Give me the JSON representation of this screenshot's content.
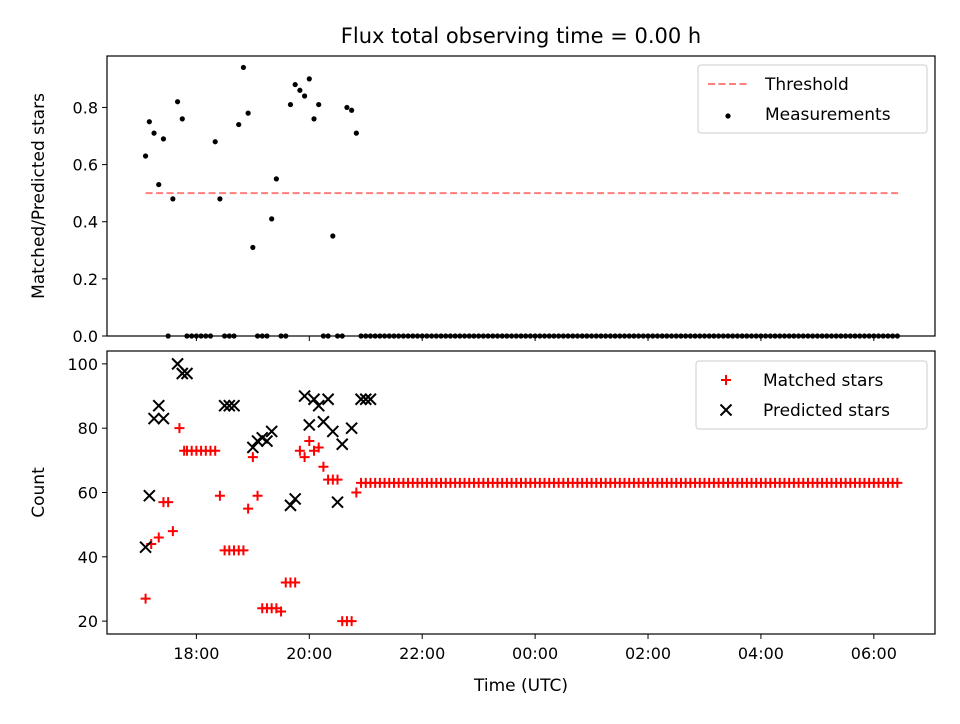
{
  "figure": {
    "title": "Flux total observing time = 0.00 h",
    "xlabel": "Time (UTC)"
  },
  "chart_data": [
    {
      "type": "scatter",
      "ylabel": "Matched/Predicted stars",
      "ylim": [
        0,
        0.98
      ],
      "yticks": [
        "0.0",
        "0.2",
        "0.4",
        "0.6",
        "0.8"
      ],
      "legend_position": "top-right",
      "threshold": {
        "name": "Threshold",
        "y": 0.5,
        "x_start": "17:06",
        "x_end": "06:27",
        "color": "#ff7f7f",
        "style": "dashed"
      },
      "series": [
        {
          "name": "Measurements",
          "color": "#000000",
          "marker": "dot",
          "x": [
            "17:06",
            "17:10",
            "17:15",
            "17:20",
            "17:25",
            "17:30",
            "17:35",
            "17:40",
            "17:45",
            "17:50",
            "17:55",
            "18:00",
            "18:05",
            "18:10",
            "18:15",
            "18:20",
            "18:25",
            "18:30",
            "18:35",
            "18:40",
            "18:45",
            "18:50",
            "18:55",
            "19:00",
            "19:05",
            "19:10",
            "19:15",
            "19:20",
            "19:25",
            "19:30",
            "19:35",
            "19:40",
            "19:45",
            "19:50",
            "19:55",
            "20:00",
            "20:05",
            "20:10",
            "20:15",
            "20:20",
            "20:25",
            "20:30",
            "20:35",
            "20:40",
            "20:45",
            "20:50",
            "20:55",
            "21:00",
            "21:05"
          ],
          "y": [
            0.63,
            0.75,
            0.71,
            0.53,
            0.69,
            0.0,
            0.48,
            0.82,
            0.76,
            0.0,
            0.0,
            0.0,
            0.0,
            0.0,
            0.0,
            0.68,
            0.48,
            0.0,
            0.0,
            0.0,
            0.74,
            0.94,
            0.78,
            0.31,
            0.0,
            0.0,
            0.0,
            0.41,
            0.55,
            0.0,
            0.0,
            0.81,
            0.88,
            0.86,
            0.84,
            0.9,
            0.76,
            0.81,
            0.0,
            0.0,
            0.35,
            0.0,
            0.0,
            0.8,
            0.79,
            0.71,
            0.0,
            0.0,
            0.0
          ],
          "zero_run": {
            "x_start": "21:10",
            "x_end": "06:25",
            "step_minutes": 5,
            "y": 0.0
          }
        }
      ]
    },
    {
      "type": "scatter",
      "ylabel": "Count",
      "ylim": [
        16,
        104
      ],
      "yticks": [
        "20",
        "40",
        "60",
        "80",
        "100"
      ],
      "legend_position": "top-right",
      "xticks": [
        "18:00",
        "20:00",
        "22:00",
        "00:00",
        "02:00",
        "04:00",
        "06:00"
      ],
      "x_range": [
        "16:25",
        "07:05"
      ],
      "series": [
        {
          "name": "Matched stars",
          "color": "#ff0000",
          "marker": "plus",
          "x": [
            "17:06",
            "17:12",
            "17:20",
            "17:25",
            "17:30",
            "17:35",
            "17:42",
            "17:47",
            "17:50",
            "17:55",
            "18:00",
            "18:05",
            "18:10",
            "18:15",
            "18:20",
            "18:25",
            "18:30",
            "18:35",
            "18:40",
            "18:45",
            "18:50",
            "18:55",
            "19:00",
            "19:05",
            "19:10",
            "19:15",
            "19:20",
            "19:25",
            "19:30",
            "19:35",
            "19:40",
            "19:45",
            "19:50",
            "19:55",
            "20:00",
            "20:05",
            "20:10",
            "20:15",
            "20:20",
            "20:25",
            "20:30",
            "20:35",
            "20:40",
            "20:45",
            "20:50",
            "20:55"
          ],
          "y": [
            27,
            44,
            46,
            57,
            57,
            48,
            80,
            73,
            73,
            73,
            73,
            73,
            73,
            73,
            73,
            59,
            42,
            42,
            42,
            42,
            42,
            55,
            71,
            59,
            24,
            24,
            24,
            24,
            23,
            32,
            32,
            32,
            73,
            71,
            76,
            73,
            74,
            68,
            64,
            64,
            64,
            20,
            20,
            20,
            60,
            63
          ],
          "constant_run": {
            "x_start": "21:00",
            "x_end": "06:25",
            "step_minutes": 5,
            "y": 63
          }
        },
        {
          "name": "Predicted stars",
          "color": "#000000",
          "marker": "x",
          "x": [
            "17:06",
            "17:10",
            "17:15",
            "17:20",
            "17:25",
            "17:40",
            "17:45",
            "17:50",
            "18:30",
            "18:35",
            "18:40",
            "19:00",
            "19:05",
            "19:10",
            "19:15",
            "19:20",
            "19:40",
            "19:45",
            "19:55",
            "20:00",
            "20:05",
            "20:10",
            "20:15",
            "20:20",
            "20:25",
            "20:30",
            "20:35",
            "20:45",
            "20:55",
            "21:00",
            "21:05"
          ],
          "y": [
            43,
            59,
            83,
            87,
            83,
            100,
            97,
            97,
            87,
            87,
            87,
            74,
            76,
            77,
            76,
            79,
            56,
            58,
            90,
            81,
            89,
            87,
            82,
            89,
            79,
            57,
            75,
            80,
            89,
            89,
            89
          ]
        }
      ]
    }
  ]
}
